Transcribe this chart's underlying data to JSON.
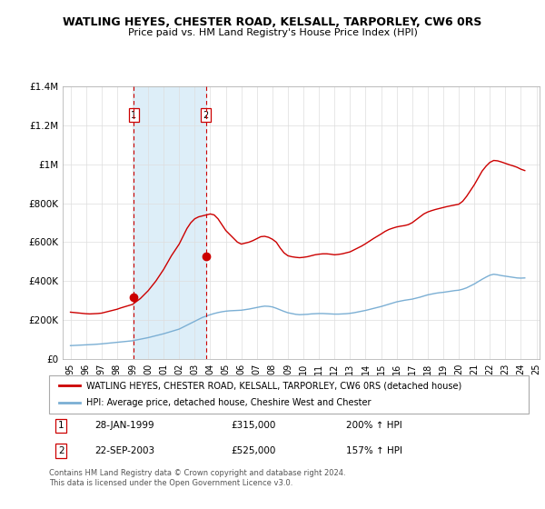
{
  "title": "WATLING HEYES, CHESTER ROAD, KELSALL, TARPORLEY, CW6 0RS",
  "subtitle": "Price paid vs. HM Land Registry's House Price Index (HPI)",
  "ylim": [
    0,
    1400000
  ],
  "yticks": [
    0,
    200000,
    400000,
    600000,
    800000,
    1000000,
    1200000,
    1400000
  ],
  "ytick_labels": [
    "£0",
    "£200K",
    "£400K",
    "£600K",
    "£800K",
    "£1M",
    "£1.2M",
    "£1.4M"
  ],
  "legend_line1": "WATLING HEYES, CHESTER ROAD, KELSALL, TARPORLEY, CW6 0RS (detached house)",
  "legend_line2": "HPI: Average price, detached house, Cheshire West and Chester",
  "footnote": "Contains HM Land Registry data © Crown copyright and database right 2024.\nThis data is licensed under the Open Government Licence v3.0.",
  "sale1_date": "28-JAN-1999",
  "sale1_price": "£315,000",
  "sale1_hpi": "200% ↑ HPI",
  "sale1_x": 1999.07,
  "sale1_y": 315000,
  "sale2_date": "22-SEP-2003",
  "sale2_price": "£525,000",
  "sale2_hpi": "157% ↑ HPI",
  "sale2_x": 2003.72,
  "sale2_y": 525000,
  "red_line_color": "#CC0000",
  "blue_line_color": "#7BAFD4",
  "blue_fill_color": "#DDEEF8",
  "vline_color": "#CC0000",
  "grid_color": "#DDDDDD",
  "xmin": 1994.5,
  "xmax": 2025.2,
  "xtick_years": [
    1995,
    1996,
    1997,
    1998,
    1999,
    2000,
    2001,
    2002,
    2003,
    2004,
    2005,
    2006,
    2007,
    2008,
    2009,
    2010,
    2011,
    2012,
    2013,
    2014,
    2015,
    2016,
    2017,
    2018,
    2019,
    2020,
    2021,
    2022,
    2023,
    2024,
    2025
  ],
  "hpi_x": [
    1995.0,
    1995.25,
    1995.5,
    1995.75,
    1996.0,
    1996.25,
    1996.5,
    1996.75,
    1997.0,
    1997.25,
    1997.5,
    1997.75,
    1998.0,
    1998.25,
    1998.5,
    1998.75,
    1999.0,
    1999.25,
    1999.5,
    1999.75,
    2000.0,
    2000.25,
    2000.5,
    2000.75,
    2001.0,
    2001.25,
    2001.5,
    2001.75,
    2002.0,
    2002.25,
    2002.5,
    2002.75,
    2003.0,
    2003.25,
    2003.5,
    2003.75,
    2004.0,
    2004.25,
    2004.5,
    2004.75,
    2005.0,
    2005.25,
    2005.5,
    2005.75,
    2006.0,
    2006.25,
    2006.5,
    2006.75,
    2007.0,
    2007.25,
    2007.5,
    2007.75,
    2008.0,
    2008.25,
    2008.5,
    2008.75,
    2009.0,
    2009.25,
    2009.5,
    2009.75,
    2010.0,
    2010.25,
    2010.5,
    2010.75,
    2011.0,
    2011.25,
    2011.5,
    2011.75,
    2012.0,
    2012.25,
    2012.5,
    2012.75,
    2013.0,
    2013.25,
    2013.5,
    2013.75,
    2014.0,
    2014.25,
    2014.5,
    2014.75,
    2015.0,
    2015.25,
    2015.5,
    2015.75,
    2016.0,
    2016.25,
    2016.5,
    2016.75,
    2017.0,
    2017.25,
    2017.5,
    2017.75,
    2018.0,
    2018.25,
    2018.5,
    2018.75,
    2019.0,
    2019.25,
    2019.5,
    2019.75,
    2020.0,
    2020.25,
    2020.5,
    2020.75,
    2021.0,
    2021.25,
    2021.5,
    2021.75,
    2022.0,
    2022.25,
    2022.5,
    2022.75,
    2023.0,
    2023.25,
    2023.5,
    2023.75,
    2024.0,
    2024.25
  ],
  "hpi_y": [
    68000,
    69000,
    70000,
    71000,
    72000,
    73000,
    74000,
    75500,
    77000,
    79000,
    81000,
    83000,
    85000,
    87000,
    89000,
    91000,
    93000,
    97000,
    101000,
    105000,
    109000,
    114000,
    119000,
    124000,
    129000,
    135000,
    141000,
    147000,
    153000,
    163000,
    173000,
    183000,
    193000,
    203000,
    213000,
    220000,
    227000,
    233000,
    238000,
    242000,
    245000,
    247000,
    248000,
    249000,
    250000,
    253000,
    256000,
    260000,
    264000,
    268000,
    271000,
    270000,
    267000,
    260000,
    252000,
    244000,
    237000,
    233000,
    229000,
    227000,
    228000,
    229000,
    231000,
    232000,
    233000,
    233000,
    232000,
    231000,
    230000,
    230000,
    231000,
    232000,
    234000,
    237000,
    241000,
    245000,
    249000,
    254000,
    259000,
    264000,
    269000,
    275000,
    281000,
    287000,
    293000,
    297000,
    301000,
    304000,
    307000,
    312000,
    317000,
    323000,
    329000,
    333000,
    337000,
    340000,
    342000,
    345000,
    348000,
    351000,
    353000,
    358000,
    365000,
    375000,
    385000,
    397000,
    409000,
    420000,
    430000,
    435000,
    432000,
    428000,
    425000,
    422000,
    419000,
    416000,
    415000,
    416000
  ],
  "red_x": [
    1995.0,
    1995.25,
    1995.5,
    1995.75,
    1996.0,
    1996.25,
    1996.5,
    1996.75,
    1997.0,
    1997.25,
    1997.5,
    1997.75,
    1998.0,
    1998.25,
    1998.5,
    1998.75,
    1999.0,
    1999.25,
    1999.5,
    1999.75,
    2000.0,
    2000.25,
    2000.5,
    2000.75,
    2001.0,
    2001.25,
    2001.5,
    2001.75,
    2002.0,
    2002.25,
    2002.5,
    2002.75,
    2003.0,
    2003.25,
    2003.5,
    2003.75,
    2004.0,
    2004.25,
    2004.5,
    2004.75,
    2005.0,
    2005.25,
    2005.5,
    2005.75,
    2006.0,
    2006.25,
    2006.5,
    2006.75,
    2007.0,
    2007.25,
    2007.5,
    2007.75,
    2008.0,
    2008.25,
    2008.5,
    2008.75,
    2009.0,
    2009.25,
    2009.5,
    2009.75,
    2010.0,
    2010.25,
    2010.5,
    2010.75,
    2011.0,
    2011.25,
    2011.5,
    2011.75,
    2012.0,
    2012.25,
    2012.5,
    2012.75,
    2013.0,
    2013.25,
    2013.5,
    2013.75,
    2014.0,
    2014.25,
    2014.5,
    2014.75,
    2015.0,
    2015.25,
    2015.5,
    2015.75,
    2016.0,
    2016.25,
    2016.5,
    2016.75,
    2017.0,
    2017.25,
    2017.5,
    2017.75,
    2018.0,
    2018.25,
    2018.5,
    2018.75,
    2019.0,
    2019.25,
    2019.5,
    2019.75,
    2020.0,
    2020.25,
    2020.5,
    2020.75,
    2021.0,
    2021.25,
    2021.5,
    2021.75,
    2022.0,
    2022.25,
    2022.5,
    2022.75,
    2023.0,
    2023.25,
    2023.5,
    2023.75,
    2024.0,
    2024.25
  ],
  "red_y": [
    240000,
    238000,
    236000,
    234000,
    232000,
    231000,
    232000,
    233000,
    235000,
    240000,
    245000,
    250000,
    255000,
    262000,
    268000,
    274000,
    280000,
    295000,
    310000,
    330000,
    350000,
    375000,
    400000,
    430000,
    460000,
    495000,
    530000,
    560000,
    590000,
    630000,
    670000,
    700000,
    720000,
    730000,
    735000,
    740000,
    745000,
    740000,
    720000,
    690000,
    660000,
    640000,
    620000,
    600000,
    590000,
    595000,
    600000,
    608000,
    618000,
    628000,
    630000,
    625000,
    615000,
    600000,
    570000,
    545000,
    530000,
    525000,
    522000,
    520000,
    522000,
    525000,
    530000,
    535000,
    538000,
    540000,
    540000,
    538000,
    535000,
    537000,
    540000,
    545000,
    550000,
    560000,
    570000,
    580000,
    592000,
    605000,
    618000,
    630000,
    642000,
    655000,
    665000,
    672000,
    678000,
    682000,
    685000,
    690000,
    700000,
    715000,
    730000,
    745000,
    755000,
    762000,
    768000,
    773000,
    778000,
    783000,
    787000,
    791000,
    795000,
    810000,
    835000,
    865000,
    895000,
    930000,
    965000,
    990000,
    1010000,
    1020000,
    1018000,
    1012000,
    1005000,
    998000,
    992000,
    985000,
    975000,
    968000
  ]
}
